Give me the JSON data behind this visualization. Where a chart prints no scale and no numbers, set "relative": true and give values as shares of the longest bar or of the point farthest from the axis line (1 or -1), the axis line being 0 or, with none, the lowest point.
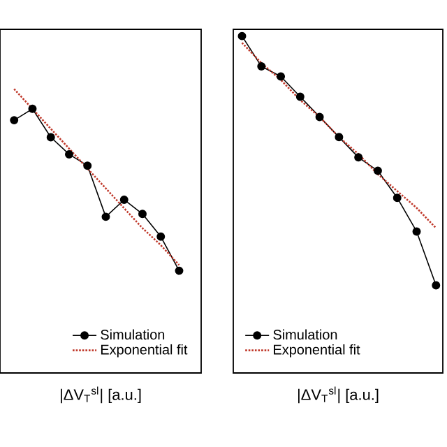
{
  "chart_data": [
    {
      "type": "line",
      "relative": true,
      "xlabel": "|ΔV$_{T}$$^{sl}$| [a.u.]",
      "categories": [
        null,
        null,
        null,
        null,
        null,
        null,
        null,
        null,
        null,
        null
      ],
      "legend": "bottom right",
      "series": [
        {
          "name": "Simulation",
          "color": "#000000",
          "marker": "circle",
          "line_style": "solid",
          "values": [
            0.89,
            0.93,
            0.83,
            0.77,
            0.73,
            0.55,
            0.61,
            0.56,
            0.48,
            0.36
          ]
        },
        {
          "name": "Exponential fit",
          "color": "#c0392b",
          "marker": "none",
          "line_style": "dotted",
          "values": [
            1.0,
            0.93,
            0.86,
            0.79,
            0.72,
            0.65,
            0.58,
            0.51,
            0.45,
            0.38
          ]
        }
      ]
    },
    {
      "type": "line",
      "relative": true,
      "xlabel": "|ΔV$_{T}$$^{sl}$| [a.u.]",
      "categories": [
        null,
        null,
        null,
        null,
        null,
        null,
        null,
        null,
        null,
        null,
        null
      ],
      "legend": "bottom left",
      "series": [
        {
          "name": "Simulation",
          "color": "#000000",
          "marker": "circle",
          "line_style": "solid",
          "values": [
            1.0,
            0.91,
            0.88,
            0.82,
            0.76,
            0.7,
            0.64,
            0.6,
            0.52,
            0.42,
            0.26
          ]
        },
        {
          "name": "Exponential fit",
          "color": "#c0392b",
          "marker": "none",
          "line_style": "dotted",
          "values": [
            0.98,
            0.92,
            0.87,
            0.81,
            0.76,
            0.7,
            0.65,
            0.59,
            0.54,
            0.49,
            0.43
          ]
        }
      ]
    }
  ]
}
